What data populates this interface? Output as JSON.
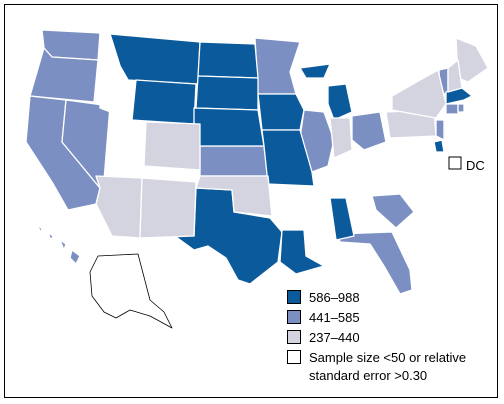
{
  "legend": [
    {
      "label": "586–988",
      "color": "#0a5a9c"
    },
    {
      "label": "441–585",
      "color": "#7b8fc2"
    },
    {
      "label": "237–440",
      "color": "#d3d4e0"
    },
    {
      "label": "Sample size <50 or relative standard error >0.30",
      "label_line1": "Sample size <50 or relative",
      "label_line2": "standard error >0.30",
      "color": "#ffffff"
    }
  ],
  "dc_label": "DC",
  "state_categories": {
    "586–988": [
      "MT",
      "WY",
      "ND",
      "SD",
      "NE",
      "IA",
      "MO",
      "MI",
      "TX",
      "LA",
      "AL",
      "DE",
      "MA"
    ],
    "441–585": [
      "WA",
      "OR",
      "CA",
      "NV",
      "MN",
      "KS",
      "IL",
      "OH",
      "SC",
      "FL",
      "HI",
      "VT",
      "CT",
      "NJ",
      "RI"
    ],
    "237–440": [
      "AZ",
      "NM",
      "CO",
      "OK",
      "IN",
      "PA",
      "NY",
      "ME",
      "NH"
    ],
    "Sample size <50 or relative standard error >0.30": [
      "ID",
      "UT",
      "WI",
      "AR",
      "TN",
      "KY",
      "MS",
      "GA",
      "NC",
      "VA",
      "WV",
      "MD",
      "AK",
      "DC"
    ]
  }
}
